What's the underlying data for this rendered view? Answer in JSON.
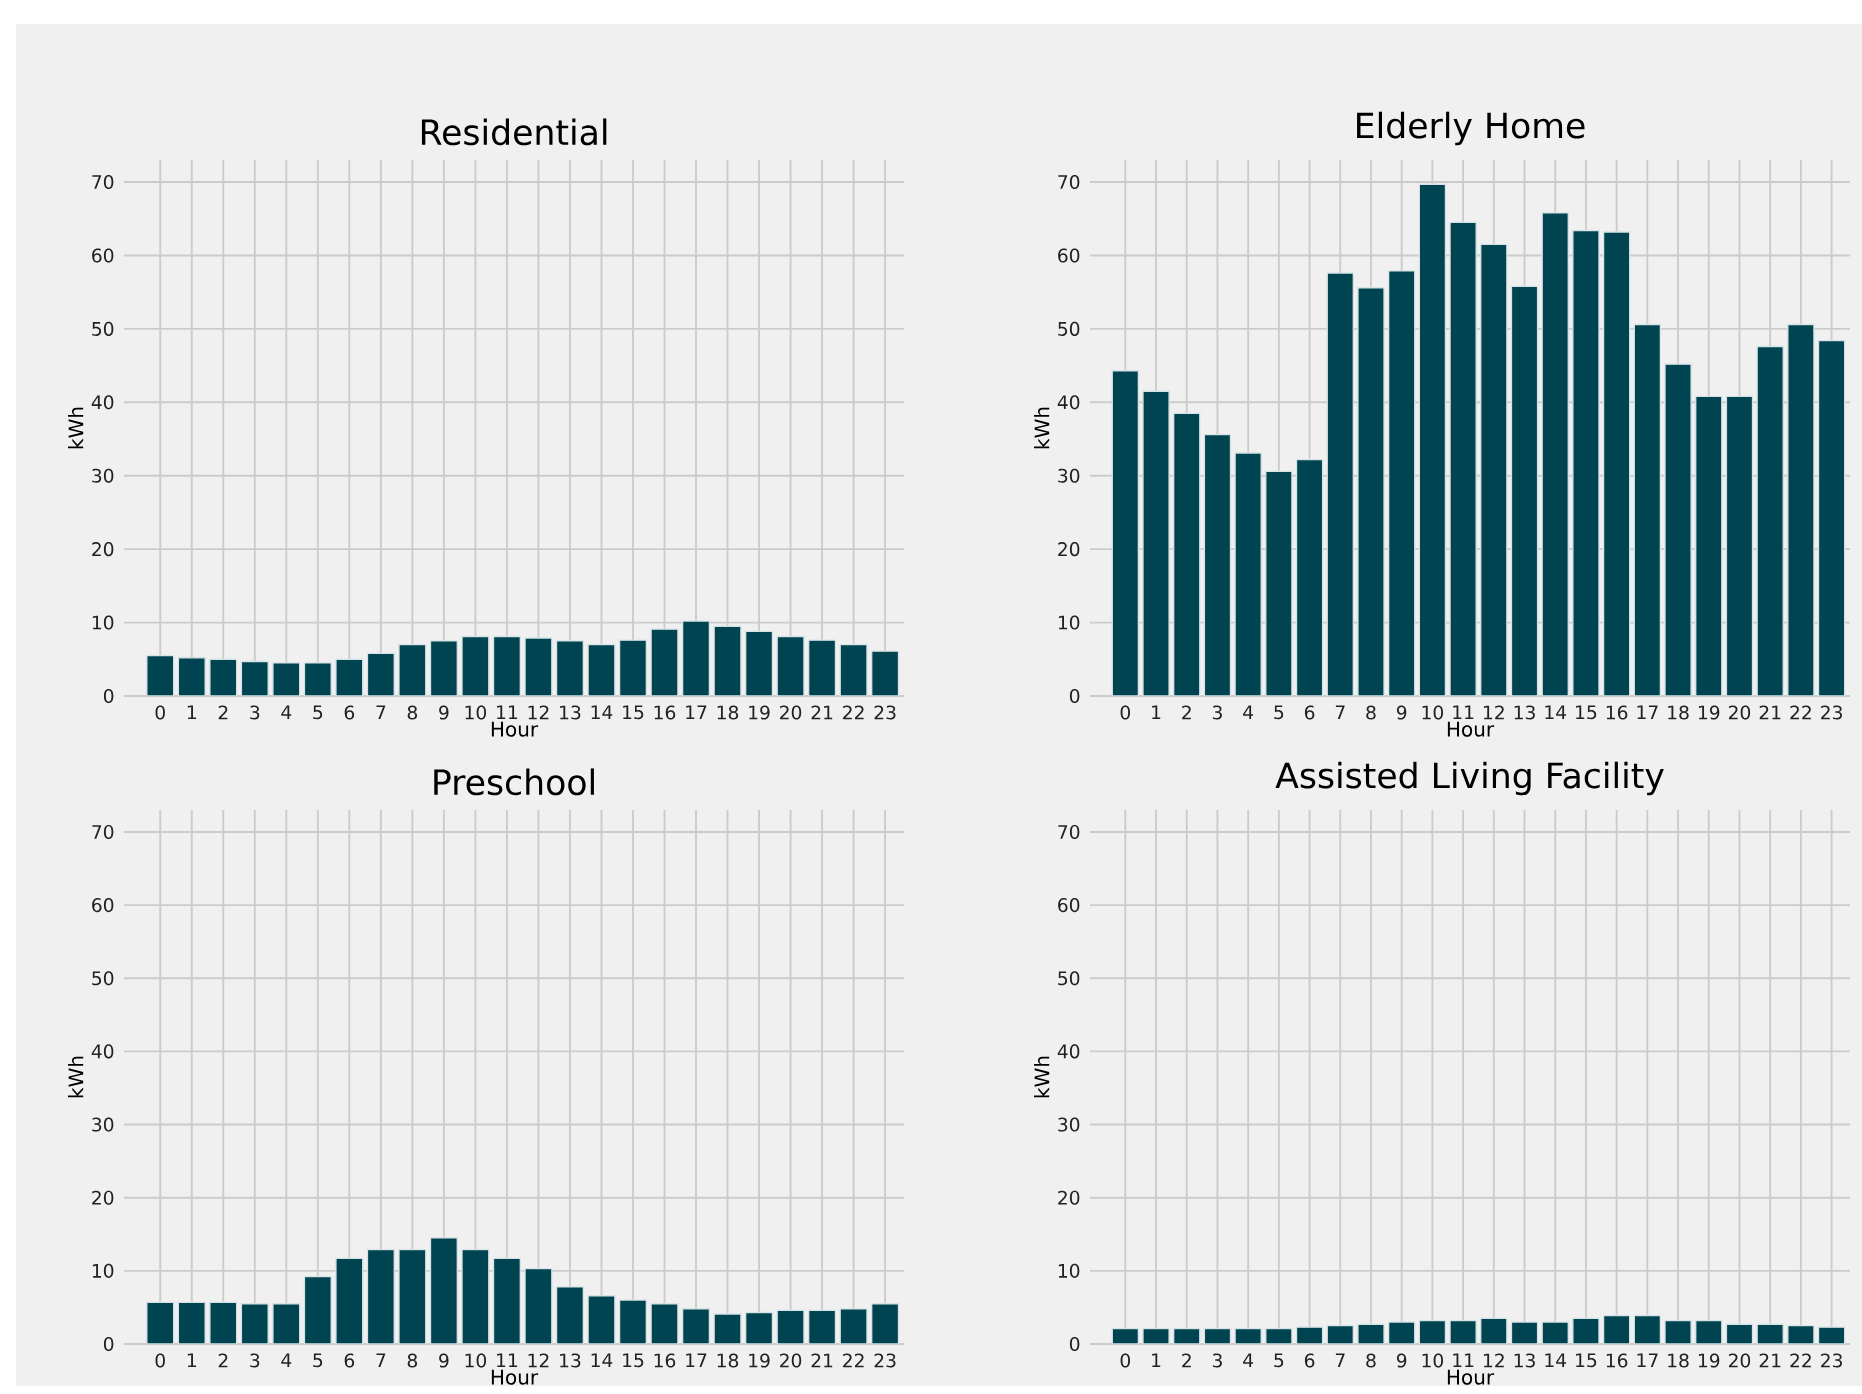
{
  "chart_data": [
    {
      "type": "bar",
      "title": "Residential",
      "xlabel": "Hour",
      "ylabel": "kWh",
      "categories": [
        "0",
        "1",
        "2",
        "3",
        "4",
        "5",
        "6",
        "7",
        "8",
        "9",
        "10",
        "11",
        "12",
        "13",
        "14",
        "15",
        "16",
        "17",
        "18",
        "19",
        "20",
        "21",
        "22",
        "23"
      ],
      "values": [
        5.5,
        5.2,
        5.0,
        4.7,
        4.5,
        4.5,
        5.0,
        5.8,
        7.0,
        7.5,
        8.1,
        8.1,
        7.9,
        7.5,
        7.0,
        7.6,
        9.1,
        10.2,
        9.5,
        8.8,
        8.1,
        7.6,
        7.0,
        6.1
      ],
      "color": "#004451",
      "ylim": [
        0,
        73
      ],
      "yticks": [
        0,
        10,
        20,
        30,
        40,
        50,
        60,
        70
      ],
      "grid": true
    },
    {
      "type": "bar",
      "title": "Elderly Home",
      "xlabel": "Hour",
      "ylabel": "kWh",
      "categories": [
        "0",
        "1",
        "2",
        "3",
        "4",
        "5",
        "6",
        "7",
        "8",
        "9",
        "10",
        "11",
        "12",
        "13",
        "14",
        "15",
        "16",
        "17",
        "18",
        "19",
        "20",
        "21",
        "22",
        "23"
      ],
      "values": [
        44.3,
        41.5,
        38.5,
        35.6,
        33.1,
        30.6,
        32.2,
        57.6,
        55.6,
        57.9,
        69.7,
        64.5,
        61.5,
        55.8,
        65.8,
        63.4,
        63.2,
        50.6,
        45.2,
        40.8,
        40.8,
        47.6,
        50.6,
        48.4
      ],
      "color": "#004451",
      "ylim": [
        0,
        73
      ],
      "yticks": [
        0,
        10,
        20,
        30,
        40,
        50,
        60,
        70
      ],
      "grid": true
    },
    {
      "type": "bar",
      "title": "Preschool",
      "xlabel": "Hour",
      "ylabel": "kWh",
      "categories": [
        "0",
        "1",
        "2",
        "3",
        "4",
        "5",
        "6",
        "7",
        "8",
        "9",
        "10",
        "11",
        "12",
        "13",
        "14",
        "15",
        "16",
        "17",
        "18",
        "19",
        "20",
        "21",
        "22",
        "23"
      ],
      "values": [
        5.7,
        5.7,
        5.7,
        5.5,
        5.5,
        9.2,
        11.7,
        12.9,
        12.9,
        14.5,
        12.9,
        11.7,
        10.3,
        7.8,
        6.6,
        6.0,
        5.5,
        4.8,
        4.1,
        4.3,
        4.6,
        4.6,
        4.8,
        5.5
      ],
      "color": "#004451",
      "ylim": [
        0,
        73
      ],
      "yticks": [
        0,
        10,
        20,
        30,
        40,
        50,
        60,
        70
      ],
      "grid": true
    },
    {
      "type": "bar",
      "title": "Assisted Living Facility",
      "xlabel": "Hour",
      "ylabel": "kWh",
      "categories": [
        "0",
        "1",
        "2",
        "3",
        "4",
        "5",
        "6",
        "7",
        "8",
        "9",
        "10",
        "11",
        "12",
        "13",
        "14",
        "15",
        "16",
        "17",
        "18",
        "19",
        "20",
        "21",
        "22",
        "23"
      ],
      "values": [
        2.1,
        2.1,
        2.1,
        2.1,
        2.1,
        2.1,
        2.3,
        2.5,
        2.7,
        3.0,
        3.2,
        3.2,
        3.5,
        3.0,
        3.0,
        3.5,
        3.9,
        3.9,
        3.2,
        3.2,
        2.7,
        2.7,
        2.5,
        2.3
      ],
      "color": "#004451",
      "ylim": [
        0,
        73
      ],
      "yticks": [
        0,
        10,
        20,
        30,
        40,
        50,
        60,
        70
      ],
      "grid": true
    }
  ]
}
